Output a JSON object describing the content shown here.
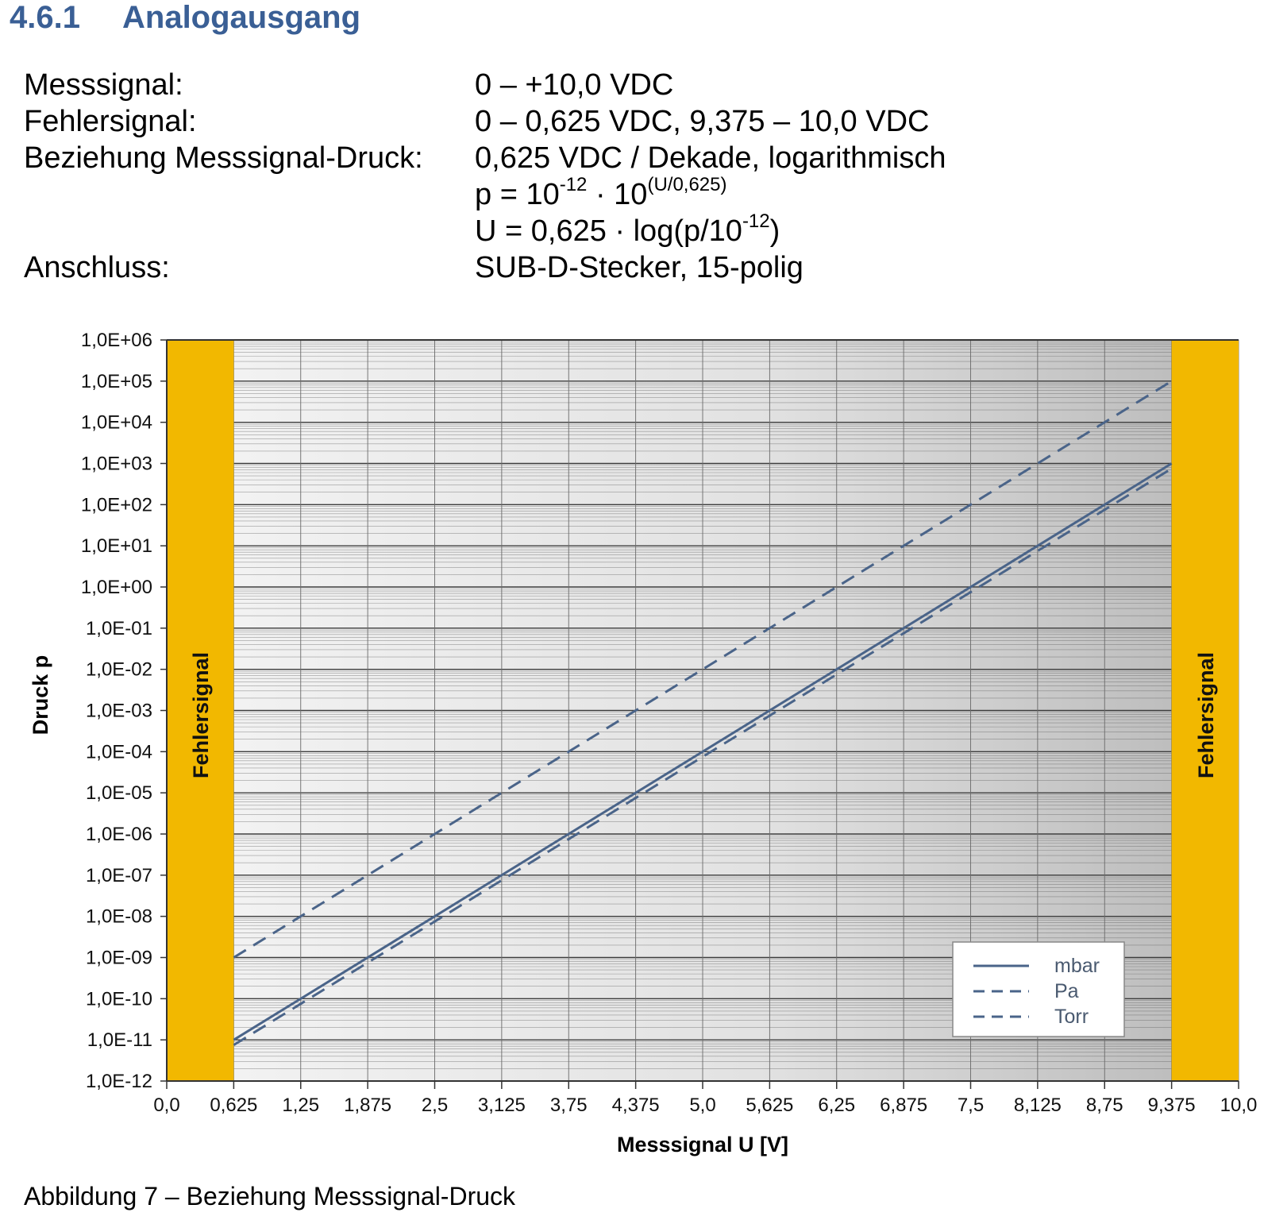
{
  "heading": {
    "number": "4.6.1",
    "title": "Analogausgang"
  },
  "specs": [
    {
      "label": "Messsignal:",
      "value": "0 – +10,0 VDC"
    },
    {
      "label": "Fehlersignal:",
      "value": "0 – 0,625 VDC, 9,375 – 10,0 VDC"
    },
    {
      "label": "Beziehung Messsignal-Druck:",
      "value": "0,625 VDC / Dekade, logarithmisch"
    },
    {
      "label": "",
      "value": "p = 10",
      "exp1": "-12",
      "mid": " · 10",
      "exp2": "(U/0,625)"
    },
    {
      "label": "",
      "value": "U = 0,625 · log(p/10",
      "exp1": "-12",
      "tail": ")"
    },
    {
      "label": "Anschluss:",
      "value": "SUB-D-Stecker, 15-polig"
    }
  ],
  "caption": "Abbildung 7 – Beziehung Messsignal-Druck",
  "chart_data": {
    "type": "line",
    "xlabel": "Messsignal U [V]",
    "ylabel": "Druck p",
    "xlim": [
      0,
      10
    ],
    "ylim": [
      1e-12,
      1000000.0
    ],
    "yscale": "log",
    "x_ticks": [
      "0,0",
      "0,625",
      "1,25",
      "1,875",
      "2,5",
      "3,125",
      "3,75",
      "4,375",
      "5,0",
      "5,625",
      "6,25",
      "6,875",
      "7,5",
      "8,125",
      "8,75",
      "9,375",
      "10,0"
    ],
    "y_ticks": [
      "1,0E-12",
      "1,0E-11",
      "1,0E-10",
      "1,0E-09",
      "1,0E-08",
      "1,0E-07",
      "1,0E-06",
      "1,0E-05",
      "1,0E-04",
      "1,0E-03",
      "1,0E-02",
      "1,0E-01",
      "1,0E+00",
      "1,0E+01",
      "1,0E+02",
      "1,0E+03",
      "1,0E+04",
      "1,0E+05",
      "1,0E+06"
    ],
    "error_bands": [
      {
        "label": "Fehlersignal",
        "x": [
          0,
          0.625
        ]
      },
      {
        "label": "Fehlersignal",
        "x": [
          9.375,
          10
        ]
      }
    ],
    "series": [
      {
        "name": "mbar",
        "style": "solid",
        "x": [
          0.625,
          9.375
        ],
        "y": [
          1e-11,
          1000.0
        ]
      },
      {
        "name": "Pa",
        "style": "dash",
        "x": [
          0.625,
          9.375
        ],
        "y": [
          1e-09,
          100000.0
        ]
      },
      {
        "name": "Torr",
        "style": "dash",
        "x": [
          0.625,
          9.375
        ],
        "y": [
          7.5e-12,
          750.0
        ]
      }
    ],
    "legend": "bottom-right",
    "grid": true,
    "colors": {
      "band": "#f2b800",
      "line": "#4a6489",
      "grid": "#3c3c3c"
    }
  }
}
